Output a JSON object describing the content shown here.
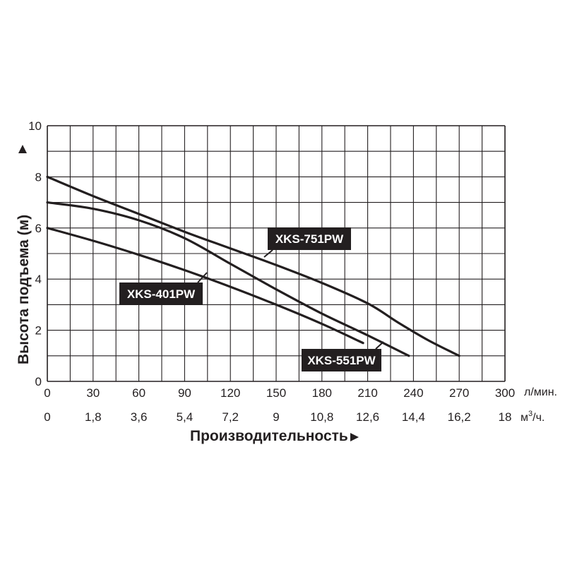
{
  "chart_data": {
    "type": "line",
    "ylabel": "Высота подъема (м)",
    "xlabel": "Производительность",
    "x_unit_primary": "л/мин.",
    "x_unit_secondary_base": "м",
    "x_unit_secondary_sup": "3",
    "x_unit_secondary_tail": "/ч.",
    "xlim": [
      0,
      300
    ],
    "ylim": [
      0,
      10
    ],
    "x_ticks": [
      "0",
      "30",
      "60",
      "90",
      "120",
      "150",
      "180",
      "210",
      "240",
      "270",
      "300"
    ],
    "x_ticks_secondary": [
      "0",
      "1,8",
      "3,6",
      "5,4",
      "7,2",
      "9",
      "10,8",
      "12,6",
      "14,4",
      "16,2",
      "18"
    ],
    "y_ticks": [
      "0",
      "2",
      "4",
      "6",
      "8",
      "10"
    ],
    "grid": true,
    "series": [
      {
        "name": "XKS-751PW",
        "x": [
          0,
          30,
          60,
          90,
          120,
          150,
          180,
          210,
          230,
          250,
          270
        ],
        "y": [
          8.0,
          7.25,
          6.55,
          5.85,
          5.2,
          4.55,
          3.85,
          3.05,
          2.3,
          1.6,
          1.0
        ]
      },
      {
        "name": "XKS-551PW",
        "x": [
          0,
          30,
          60,
          90,
          120,
          150,
          180,
          210,
          237
        ],
        "y": [
          7.0,
          6.75,
          6.3,
          5.6,
          4.6,
          3.6,
          2.65,
          1.8,
          1.0
        ]
      },
      {
        "name": "XKS-401PW",
        "x": [
          0,
          30,
          60,
          90,
          120,
          150,
          180,
          207
        ],
        "y": [
          6.0,
          5.5,
          4.95,
          4.35,
          3.7,
          3.0,
          2.25,
          1.5
        ]
      }
    ]
  }
}
